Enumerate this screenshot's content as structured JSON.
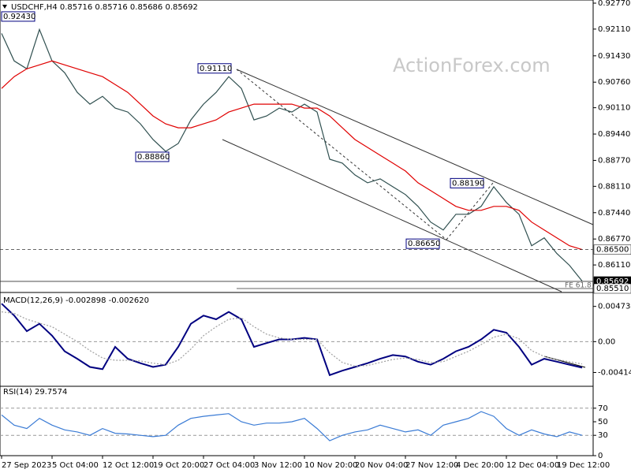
{
  "chart_data": [
    {
      "type": "line",
      "title": "USDCHF,H4 0.85716 0.85716 0.85686 0.85692",
      "watermark": "ActionForex.com",
      "categories": [
        "27 Sep 2023",
        null,
        null,
        null,
        "5 Oct 04:00",
        null,
        null,
        null,
        "12 Oct 12:00",
        null,
        null,
        null,
        "19 Oct 20:00",
        null,
        null,
        null,
        "27 Oct 04:00",
        null,
        null,
        null,
        "3 Nov 12:00",
        null,
        null,
        null,
        "10 Nov 20:00",
        null,
        null,
        null,
        "20 Nov 04:00",
        null,
        null,
        null,
        "27 Nov 12:00",
        null,
        null,
        null,
        "4 Dec 20:00",
        null,
        null,
        null,
        "12 Dec 04:00",
        null,
        null,
        null,
        "19 Dec 12:00",
        null,
        null
      ],
      "series": [
        {
          "name": "USDCHF",
          "color": "#2f4f4f",
          "values": [
            0.92,
            0.913,
            0.911,
            0.921,
            0.913,
            0.91,
            0.905,
            0.902,
            0.904,
            0.901,
            0.9,
            0.897,
            0.893,
            0.89,
            0.892,
            0.898,
            0.902,
            0.905,
            0.909,
            0.906,
            0.898,
            0.899,
            0.901,
            0.9,
            0.902,
            0.9,
            0.888,
            0.887,
            0.884,
            0.882,
            0.883,
            0.881,
            0.879,
            0.876,
            0.872,
            0.87,
            0.874,
            0.874,
            0.876,
            0.881,
            0.877,
            0.874,
            0.866,
            0.868,
            0.864,
            0.861,
            0.857
          ]
        },
        {
          "name": "MA",
          "color": "#e00000",
          "values": [
            0.906,
            0.909,
            0.911,
            0.912,
            0.913,
            0.912,
            0.911,
            0.91,
            0.909,
            0.907,
            0.905,
            0.902,
            0.899,
            0.897,
            0.896,
            0.896,
            0.897,
            0.898,
            0.9,
            0.901,
            0.902,
            0.902,
            0.902,
            0.902,
            0.901,
            0.901,
            0.899,
            0.896,
            0.893,
            0.891,
            0.889,
            0.887,
            0.885,
            0.882,
            0.88,
            0.878,
            0.876,
            0.875,
            0.875,
            0.876,
            0.876,
            0.875,
            0.872,
            0.87,
            0.868,
            0.866,
            0.865
          ]
        }
      ],
      "ylim": [
        0.8543,
        0.9285
      ],
      "yticks": [
        {
          "value": 0.9277,
          "label": "0.92770"
        },
        {
          "value": 0.9211,
          "label": "0.92110"
        },
        {
          "value": 0.9143,
          "label": "0.91430"
        },
        {
          "value": 0.9076,
          "label": "0.90760"
        },
        {
          "value": 0.9011,
          "label": "0.90110"
        },
        {
          "value": 0.8944,
          "label": "0.89440"
        },
        {
          "value": 0.8877,
          "label": "0.88770"
        },
        {
          "value": 0.8811,
          "label": "0.88110"
        },
        {
          "value": 0.8744,
          "label": "0.87440"
        },
        {
          "value": 0.8677,
          "label": "0.86770"
        },
        {
          "value": 0.8611,
          "label": "0.86110"
        }
      ],
      "price_levels": [
        {
          "value": 0.865,
          "label": "0.86500"
        },
        {
          "value": 0.85692,
          "label": "0.85692"
        },
        {
          "value": 0.8551,
          "label": "0.85510"
        }
      ],
      "level_note": "FE 61.8",
      "annotations": [
        {
          "value": 0.9243,
          "label": "0.92430"
        },
        {
          "value": 0.9111,
          "label": "0.91110"
        },
        {
          "value": 0.8886,
          "label": "0.88860"
        },
        {
          "value": 0.8819,
          "label": "0.88190"
        },
        {
          "value": 0.8665,
          "label": "0.86650"
        }
      ]
    },
    {
      "type": "line",
      "title": "MACD(12,26,9) -0.002898 -0.002620",
      "series": [
        {
          "name": "MACD",
          "color": "#000080",
          "values": [
            0.0051,
            0.0035,
            0.0014,
            0.0024,
            0.0008,
            -0.0013,
            -0.0023,
            -0.0034,
            -0.0037,
            -0.0007,
            -0.0023,
            -0.0029,
            -0.0034,
            -0.0031,
            -0.0007,
            0.0024,
            0.0035,
            0.003,
            0.004,
            0.003,
            -0.0007,
            -0.0002,
            0.0003,
            0.0003,
            0.0005,
            0.0003,
            -0.0045,
            -0.0039,
            -0.0034,
            -0.0029,
            -0.0023,
            -0.0018,
            -0.002,
            -0.0027,
            -0.0031,
            -0.0023,
            -0.0013,
            -0.0007,
            0.0003,
            0.0016,
            0.0012,
            -0.0007,
            -0.0031,
            -0.0023,
            -0.0027,
            -0.0031,
            -0.0035
          ]
        },
        {
          "name": "Signal",
          "color": "#a0a0a0",
          "values": [
            0.004,
            0.0038,
            0.003,
            0.0025,
            0.002,
            0.001,
            0.0,
            -0.0012,
            -0.0022,
            -0.0025,
            -0.0025,
            -0.0026,
            -0.0029,
            -0.0031,
            -0.0025,
            -0.001,
            0.0008,
            0.002,
            0.003,
            0.0032,
            0.002,
            0.001,
            0.0005,
            0.0003,
            0.0003,
            0.0003,
            -0.0015,
            -0.0028,
            -0.0033,
            -0.0032,
            -0.0028,
            -0.0024,
            -0.0022,
            -0.0024,
            -0.0028,
            -0.0027,
            -0.002,
            -0.0013,
            -0.0004,
            0.0006,
            0.001,
            0.0004,
            -0.0012,
            -0.002,
            -0.0024,
            -0.0027,
            -0.003
          ]
        }
      ],
      "ylim": [
        -0.006,
        0.0065
      ],
      "yticks": [
        {
          "value": 0.004734,
          "label": "0.004734"
        },
        {
          "value": 0,
          "label": "0.00"
        },
        {
          "value": -0.004144,
          "label": "-0.004144"
        }
      ],
      "levels": [
        0
      ]
    },
    {
      "type": "line",
      "title": "RSI(14) 29.7574",
      "series": [
        {
          "name": "RSI",
          "color": "#3a7bd5",
          "values": [
            60,
            45,
            40,
            55,
            45,
            38,
            35,
            30,
            40,
            33,
            32,
            30,
            28,
            30,
            45,
            55,
            58,
            60,
            62,
            50,
            45,
            48,
            48,
            50,
            55,
            40,
            22,
            30,
            35,
            38,
            45,
            40,
            35,
            38,
            30,
            45,
            50,
            55,
            65,
            58,
            40,
            30,
            38,
            32,
            28,
            35,
            30
          ]
        }
      ],
      "ylim": [
        0,
        100
      ],
      "yticks": [
        70,
        50,
        30,
        0
      ],
      "levels": [
        70,
        30
      ]
    }
  ]
}
